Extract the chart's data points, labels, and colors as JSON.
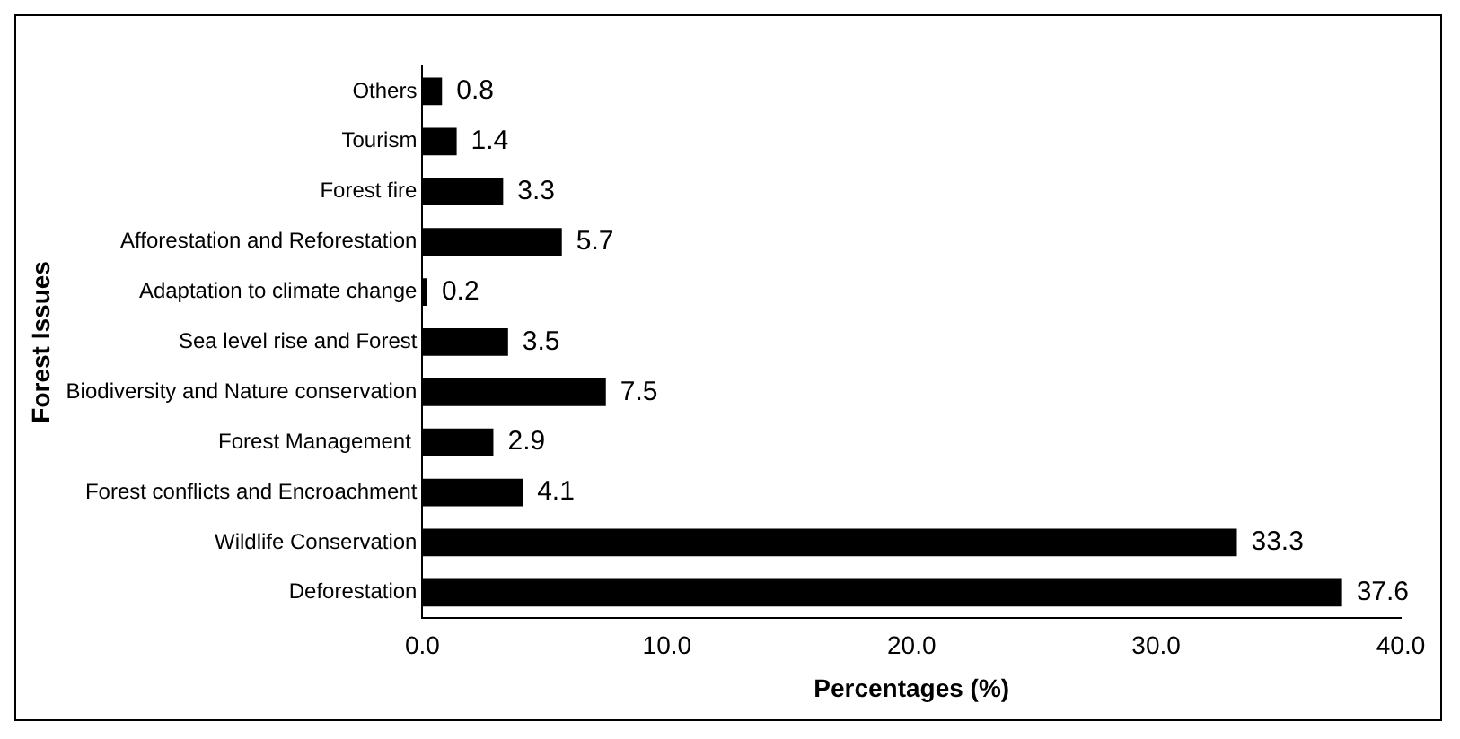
{
  "chart_data": {
    "type": "bar",
    "orientation": "horizontal",
    "xlabel": "Percentages (%)",
    "ylabel": "Forest Issues",
    "categories": [
      "Others",
      "Tourism",
      "Forest fire",
      "Afforestation and Reforestation",
      "Adaptation to climate change",
      "Sea level rise and Forest",
      "Biodiversity and Nature conservation",
      "Forest Management ",
      "Forest conflicts and Encroachment",
      "Wildlife Conservation",
      "Deforestation"
    ],
    "values": [
      0.8,
      1.4,
      3.3,
      5.7,
      0.2,
      3.5,
      7.5,
      2.9,
      4.1,
      33.3,
      37.6
    ],
    "color": "#000000",
    "data_labels": true,
    "grid": false,
    "legend": false,
    "xlim": [
      0,
      40
    ],
    "xticks": [
      {
        "value": 0,
        "label": "0.0"
      },
      {
        "value": 10,
        "label": "10.0"
      },
      {
        "value": 20,
        "label": "20.0"
      },
      {
        "value": 30,
        "label": "30.0"
      },
      {
        "value": 40,
        "label": "40.0"
      }
    ]
  }
}
